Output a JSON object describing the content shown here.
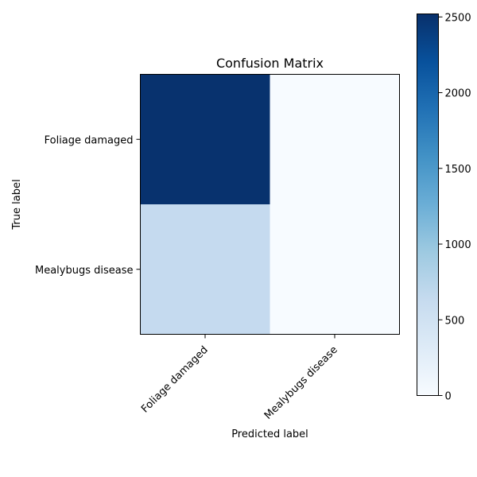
{
  "chart_data": {
    "type": "heatmap",
    "title": "Confusion Matrix",
    "xlabel": "Predicted label",
    "ylabel": "True label",
    "x_categories": [
      "Foliage damaged",
      "Mealybugs disease"
    ],
    "y_categories": [
      "Foliage damaged",
      "Mealybugs disease"
    ],
    "values": [
      [
        2500,
        0
      ],
      [
        640,
        0
      ]
    ],
    "colormap": "Blues",
    "colorbar": {
      "range": [
        0,
        2520
      ],
      "ticks": [
        0,
        500,
        1000,
        1500,
        2000,
        2500
      ]
    },
    "colors": {
      "low": "#f7fbff",
      "high": "#08306b"
    }
  }
}
